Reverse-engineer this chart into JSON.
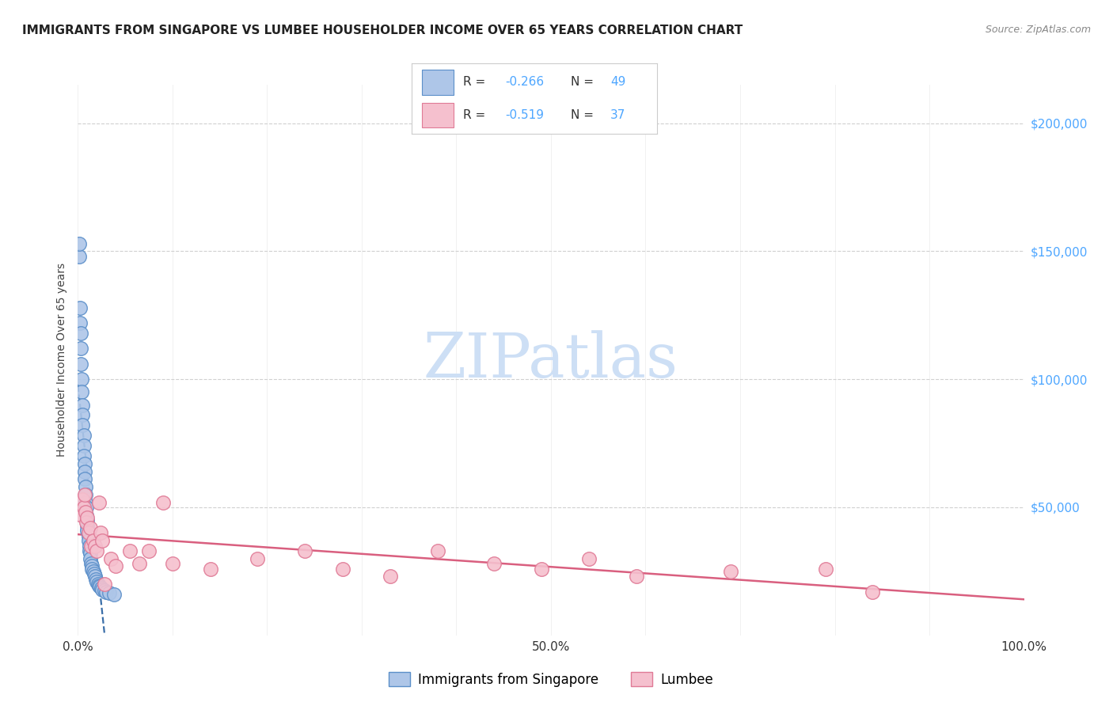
{
  "title": "IMMIGRANTS FROM SINGAPORE VS LUMBEE HOUSEHOLDER INCOME OVER 65 YEARS CORRELATION CHART",
  "source": "Source: ZipAtlas.com",
  "ylabel": "Householder Income Over 65 years",
  "xlim": [
    0,
    1.0
  ],
  "ylim": [
    0,
    215000
  ],
  "singapore_R": -0.266,
  "singapore_N": 49,
  "lumbee_R": -0.519,
  "lumbee_N": 37,
  "singapore_color": "#aec6e8",
  "singapore_edge": "#5b8fc9",
  "lumbee_color": "#f5c0ce",
  "lumbee_edge": "#e07a96",
  "singapore_line_color": "#3a6ea8",
  "lumbee_line_color": "#d95f7f",
  "watermark_color": "#cddff5",
  "background_color": "#ffffff",
  "grid_color": "#d0d0d0",
  "right_axis_color": "#4da6ff",
  "title_color": "#222222",
  "source_color": "#888888",
  "singapore_x": [
    0.001,
    0.001,
    0.002,
    0.002,
    0.003,
    0.003,
    0.003,
    0.004,
    0.004,
    0.005,
    0.005,
    0.005,
    0.006,
    0.006,
    0.006,
    0.007,
    0.007,
    0.007,
    0.008,
    0.008,
    0.008,
    0.009,
    0.009,
    0.01,
    0.01,
    0.01,
    0.011,
    0.011,
    0.012,
    0.012,
    0.013,
    0.013,
    0.014,
    0.015,
    0.015,
    0.016,
    0.017,
    0.018,
    0.019,
    0.02,
    0.021,
    0.022,
    0.023,
    0.025,
    0.026,
    0.028,
    0.03,
    0.033,
    0.038
  ],
  "singapore_y": [
    148000,
    153000,
    128000,
    122000,
    118000,
    112000,
    106000,
    100000,
    95000,
    90000,
    86000,
    82000,
    78000,
    74000,
    70000,
    67000,
    64000,
    61000,
    58000,
    55000,
    52000,
    50000,
    47000,
    45000,
    43000,
    41000,
    39000,
    37000,
    35000,
    33000,
    32000,
    30000,
    28000,
    27000,
    26000,
    25000,
    24000,
    23000,
    22000,
    21000,
    20000,
    19500,
    19000,
    18500,
    18000,
    17500,
    17000,
    16500,
    16000
  ],
  "lumbee_x": [
    0.004,
    0.005,
    0.006,
    0.007,
    0.008,
    0.009,
    0.01,
    0.011,
    0.013,
    0.014,
    0.016,
    0.018,
    0.02,
    0.022,
    0.024,
    0.026,
    0.028,
    0.035,
    0.04,
    0.055,
    0.065,
    0.075,
    0.09,
    0.1,
    0.14,
    0.19,
    0.24,
    0.28,
    0.33,
    0.38,
    0.44,
    0.49,
    0.54,
    0.59,
    0.69,
    0.79,
    0.84
  ],
  "lumbee_y": [
    47000,
    53000,
    50000,
    55000,
    48000,
    44000,
    46000,
    40000,
    42000,
    35000,
    37000,
    35000,
    33000,
    52000,
    40000,
    37000,
    20000,
    30000,
    27000,
    33000,
    28000,
    33000,
    52000,
    28000,
    26000,
    30000,
    33000,
    26000,
    23000,
    33000,
    28000,
    26000,
    30000,
    23000,
    25000,
    26000,
    17000
  ]
}
